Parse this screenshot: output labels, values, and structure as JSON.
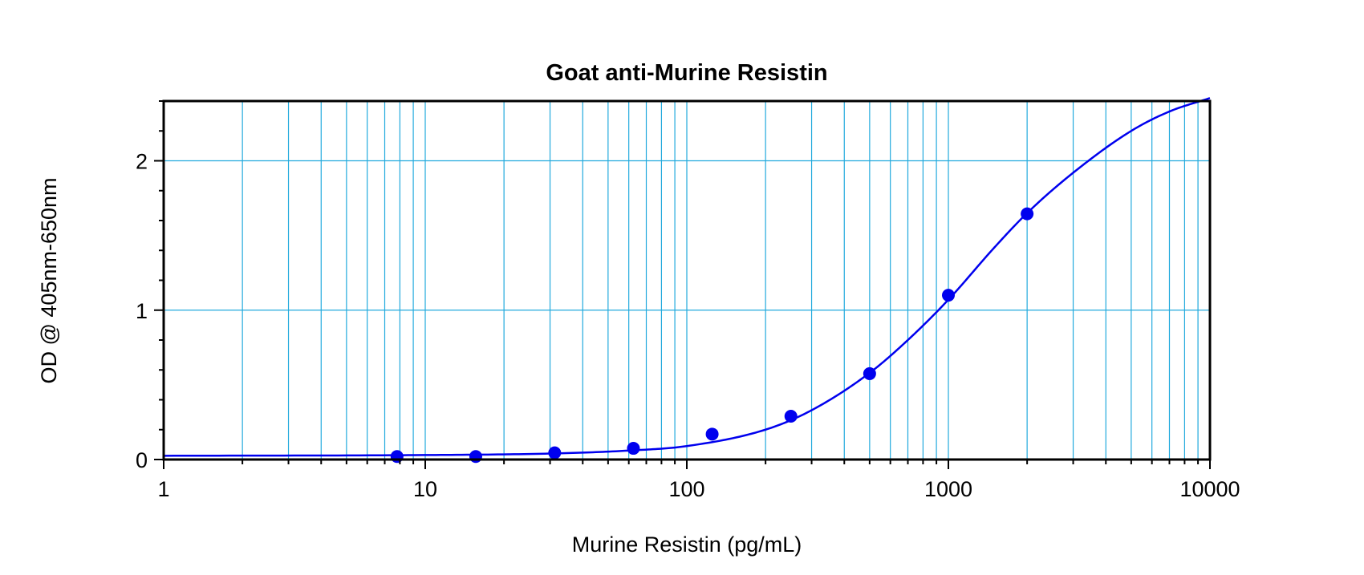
{
  "chart_data": {
    "type": "scatter",
    "title": "Goat anti-Murine Resistin",
    "xlabel": "Murine Resistin (pg/mL)",
    "ylabel": "OD @ 405nm-650nm",
    "x_scale": "log",
    "xlim": [
      1,
      10000
    ],
    "ylim": [
      0,
      2.4
    ],
    "x_ticks": [
      1,
      10,
      100,
      1000,
      10000
    ],
    "x_tick_labels": [
      "1",
      "10",
      "100",
      "1000",
      "10000"
    ],
    "y_ticks": [
      0,
      1,
      2
    ],
    "y_tick_labels": [
      "0",
      "1",
      "2"
    ],
    "grid": true,
    "legend": "none",
    "series": [
      {
        "x": [
          7.8,
          15.6,
          31.25,
          62.5,
          125,
          250,
          500,
          1000,
          2000
        ],
        "y": [
          0.02,
          0.02,
          0.045,
          0.075,
          0.17,
          0.29,
          0.575,
          1.1,
          1.645
        ]
      }
    ],
    "fit_curve": {
      "x": [
        1,
        10,
        30,
        60,
        100,
        200,
        300,
        500,
        700,
        1000,
        1500,
        2000,
        3000,
        5000,
        7000,
        10000
      ],
      "y": [
        0.025,
        0.03,
        0.04,
        0.06,
        0.09,
        0.2,
        0.33,
        0.58,
        0.8,
        1.07,
        1.42,
        1.65,
        1.92,
        2.2,
        2.33,
        2.42
      ]
    },
    "colors": {
      "points": "#0000ee",
      "curve": "#0000ee",
      "grid": "#22aadd",
      "frame": "#000000"
    }
  }
}
